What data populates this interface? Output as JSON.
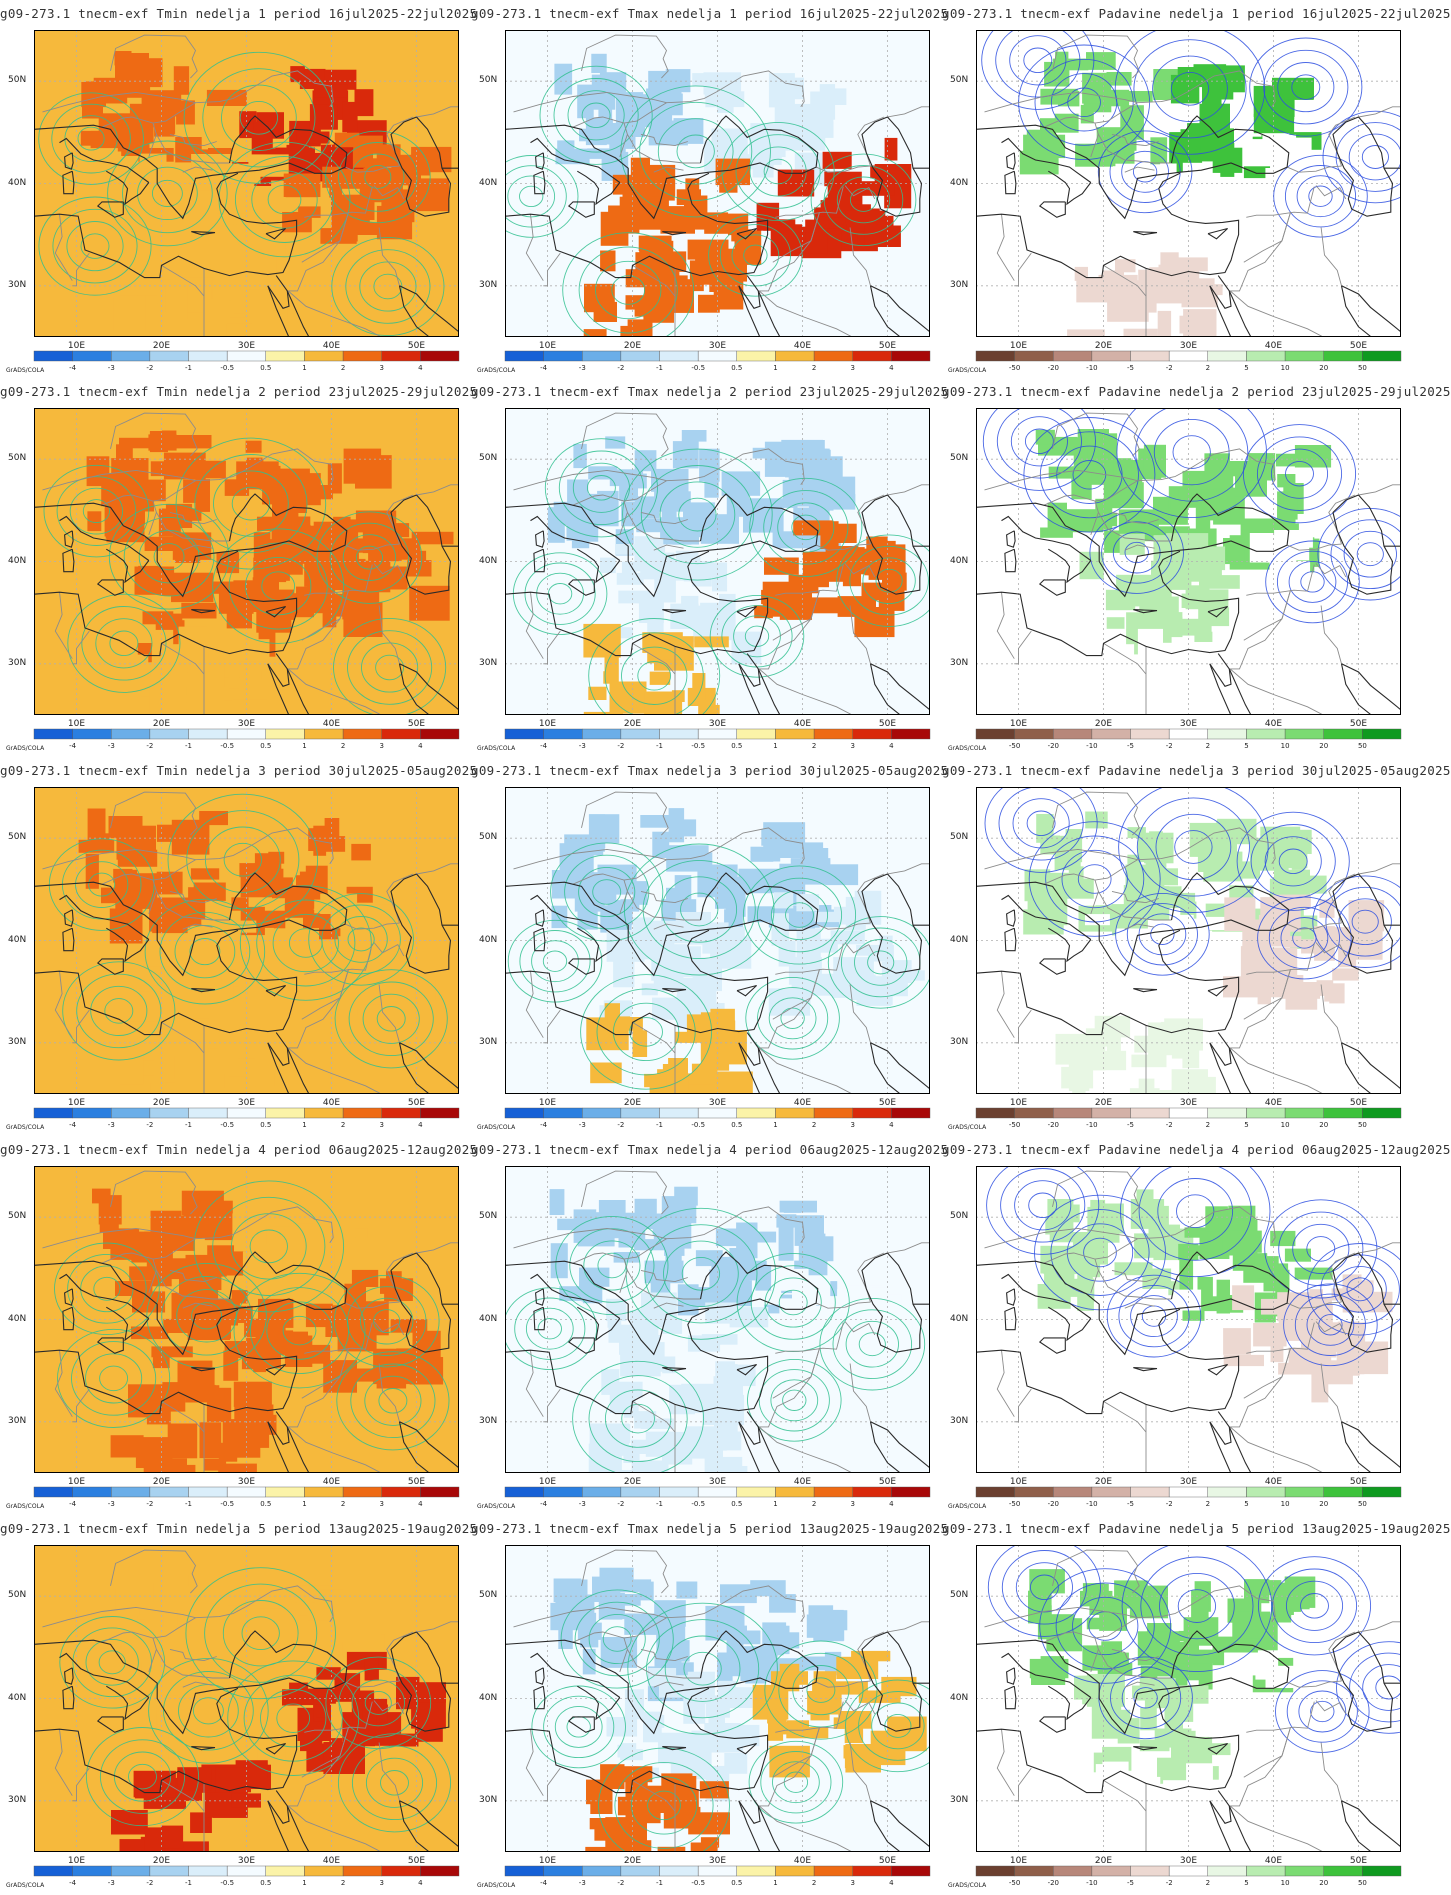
{
  "producer_label": "GrADS/COLA",
  "lon_labels": [
    "10E",
    "20E",
    "30E",
    "40E",
    "50E"
  ],
  "lat_labels": [
    "50N",
    "40N",
    "30N"
  ],
  "scales": {
    "temp": {
      "labels": [
        "-4",
        "-3",
        "-2",
        "-1",
        "-0.5",
        "0.5",
        "1",
        "2",
        "3",
        "4"
      ],
      "colors": [
        "#1660d6",
        "#2b7fe0",
        "#6baee8",
        "#a8d2f0",
        "#daeefa",
        "#f4fbff",
        "#fbf3a8",
        "#f6b93c",
        "#ee6a14",
        "#d9290b",
        "#a80808"
      ]
    },
    "precip": {
      "labels": [
        "-50",
        "-20",
        "-10",
        "-5",
        "-2",
        "2",
        "5",
        "10",
        "20",
        "50"
      ],
      "colors": [
        "#6b4030",
        "#8f5f4a",
        "#b7877a",
        "#d3b1a7",
        "#ecd8d1",
        "#ffffff",
        "#e8f7e4",
        "#b8ecb0",
        "#7bdb72",
        "#3ec23c",
        "#0f9a20"
      ]
    }
  },
  "rows": [
    {
      "titles": [
        "g09-273.1 tnecm-exf Tmin nedelja 1 period 16jul2025-22jul2025",
        "g09-273.1 tnecm-exf Tmax nedelja 1 period 16jul2025-22jul2025",
        "g09-273.1 tnecm-exf Padavine nedelja 1 period 16jul2025-22jul2025"
      ]
    },
    {
      "titles": [
        "g09-273.1 tnecm-exf Tmin nedelja 2 period 23jul2025-29jul2025",
        "g09-273.1 tnecm-exf Tmax nedelja 2 period 23jul2025-29jul2025",
        "g09-273.1 tnecm-exf Padavine nedelja 2 period 23jul2025-29jul2025"
      ]
    },
    {
      "titles": [
        "g09-273.1 tnecm-exf Tmin nedelja 3 period 30jul2025-05aug2025",
        "g09-273.1 tnecm-exf Tmax nedelja 3 period 30jul2025-05aug2025",
        "g09-273.1 tnecm-exf Padavine nedelja 3 period 30jul2025-05aug2025"
      ]
    },
    {
      "titles": [
        "g09-273.1 tnecm-exf Tmin nedelja 4 period 06aug2025-12aug2025",
        "g09-273.1 tnecm-exf Tmax nedelja 4 period 06aug2025-12aug2025",
        "g09-273.1 tnecm-exf Padavine nedelja 4 period 06aug2025-12aug2025"
      ]
    },
    {
      "titles": [
        "g09-273.1 tnecm-exf Tmin nedelja 5 period 13aug2025-19aug2025",
        "g09-273.1 tnecm-exf Tmax nedelja 5 period 13aug2025-19aug2025",
        "g09-273.1 tnecm-exf Padavine nedelja 5 period 13aug2025-19aug2025"
      ]
    }
  ],
  "columns": [
    {
      "variable": "Tmin",
      "scale": "temp",
      "base_color": "#f6b93c",
      "contour_color": "#2fbf8f",
      "anomaly": [
        [
          2,
          3,
          1,
          2,
          1
        ],
        [
          2,
          2,
          2,
          2,
          1
        ],
        [
          2,
          2,
          1,
          1,
          1
        ],
        [
          2,
          1,
          2,
          2,
          2
        ],
        [
          1,
          1,
          1,
          3,
          3
        ]
      ]
    },
    {
      "variable": "Tmax",
      "scale": "temp",
      "base_color": "#f4fbff",
      "contour_color": "#2fbf8f",
      "anomaly": [
        [
          -2,
          -1,
          2,
          3,
          2
        ],
        [
          -2,
          -2,
          -1,
          2,
          1
        ],
        [
          -2,
          -2,
          -1,
          -1,
          1
        ],
        [
          -2,
          -2,
          -1,
          0,
          -1
        ],
        [
          -2,
          -2,
          -1,
          1,
          2
        ]
      ]
    },
    {
      "variable": "Padavine",
      "scale": "precip",
      "base_color": "#ffffff",
      "contour_color": "#2b4de0",
      "anomaly": [
        [
          10,
          20,
          -2,
          -2,
          -5
        ],
        [
          10,
          10,
          5,
          -2,
          -2
        ],
        [
          5,
          5,
          -2,
          -5,
          2
        ],
        [
          5,
          10,
          -2,
          -5,
          -2
        ],
        [
          10,
          10,
          5,
          -2,
          -2
        ]
      ]
    }
  ]
}
